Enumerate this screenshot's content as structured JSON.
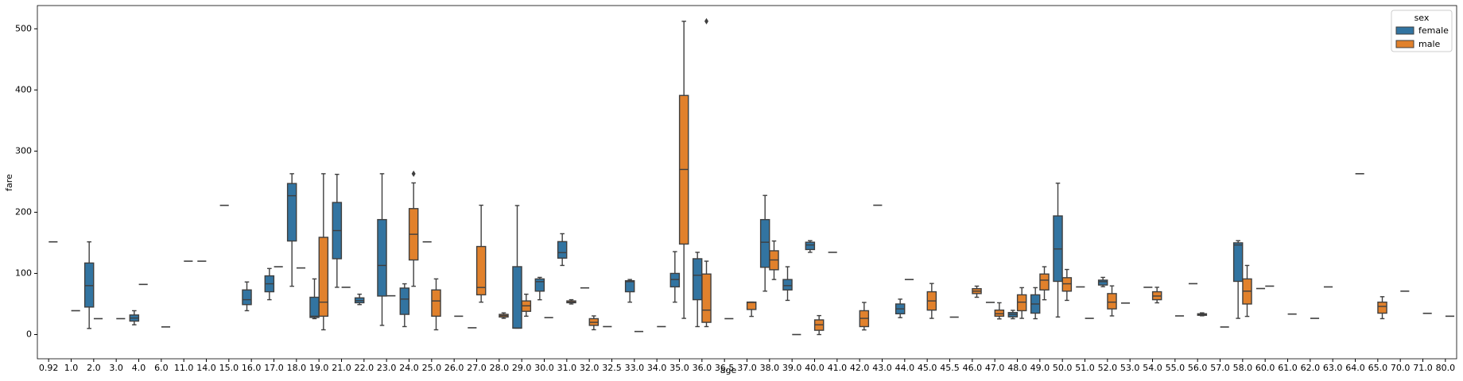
{
  "chart_data": {
    "type": "box",
    "x_label": "age",
    "y_label": "fare",
    "categories": [
      "0.92",
      "1.0",
      "2.0",
      "3.0",
      "4.0",
      "6.0",
      "11.0",
      "14.0",
      "15.0",
      "16.0",
      "17.0",
      "18.0",
      "19.0",
      "21.0",
      "22.0",
      "23.0",
      "24.0",
      "25.0",
      "26.0",
      "27.0",
      "28.0",
      "29.0",
      "30.0",
      "31.0",
      "32.0",
      "32.5",
      "33.0",
      "34.0",
      "35.0",
      "36.0",
      "36.5",
      "37.0",
      "38.0",
      "39.0",
      "40.0",
      "41.0",
      "42.0",
      "43.0",
      "44.0",
      "45.0",
      "45.5",
      "46.0",
      "47.0",
      "48.0",
      "49.0",
      "50.0",
      "51.0",
      "52.0",
      "53.0",
      "54.0",
      "55.0",
      "56.0",
      "57.0",
      "58.0",
      "60.0",
      "61.0",
      "62.0",
      "63.0",
      "64.0",
      "65.0",
      "70.0",
      "71.0",
      "80.0"
    ],
    "ylim": [
      -39.6,
      538
    ],
    "yticks": [
      0,
      100,
      200,
      300,
      400,
      500
    ],
    "legend": {
      "title": "sex",
      "position": "upper right"
    },
    "series": [
      {
        "name": "female",
        "color": "#3274a1",
        "values": [
          null,
          null,
          {
            "whislo": 10,
            "q1": 45,
            "med": 80,
            "q3": 117,
            "whishi": 151.6
          },
          null,
          {
            "whislo": 16,
            "q1": 22,
            "med": 27,
            "q3": 32,
            "whishi": 39
          },
          null,
          null,
          120,
          211.3,
          {
            "whislo": 39,
            "q1": 49,
            "med": 57,
            "q3": 73,
            "whishi": 86
          },
          {
            "whislo": 57,
            "q1": 70,
            "med": 83,
            "q3": 96,
            "whishi": 108
          },
          {
            "whislo": 79,
            "q1": 153,
            "med": 227,
            "q3": 247,
            "whishi": 263
          },
          {
            "whislo": 26,
            "q1": 28,
            "med": 30,
            "q3": 61,
            "whishi": 91
          },
          {
            "whislo": 77.3,
            "q1": 124,
            "med": 170,
            "q3": 216,
            "whishi": 262
          },
          {
            "whislo": 49,
            "q1": 52,
            "med": 55.4,
            "q3": 60,
            "whishi": 66
          },
          {
            "whislo": 15,
            "q1": 63,
            "med": 113,
            "q3": 188,
            "whishi": 263
          },
          {
            "whislo": 13,
            "q1": 33,
            "med": 58,
            "q3": 76,
            "whishi": 83
          },
          151.6,
          null,
          11.1,
          null,
          {
            "whislo": 10.5,
            "q1": 10.5,
            "med": 10.5,
            "q3": 111,
            "whishi": 211
          },
          {
            "whislo": 56.9,
            "q1": 71,
            "med": 86.5,
            "q3": 91,
            "whishi": 93.5
          },
          {
            "whislo": 113,
            "q1": 125,
            "med": 134,
            "q3": 152,
            "whishi": 164.9
          },
          76.3,
          13,
          {
            "whislo": 53,
            "q1": 70,
            "med": 86.5,
            "q3": 88,
            "whishi": 90
          },
          null,
          {
            "whislo": 53,
            "q1": 78,
            "med": 90,
            "q3": 100,
            "whishi": 135.6
          },
          {
            "whislo": 13,
            "q1": 57,
            "med": 97,
            "q3": 124,
            "whishi": 134.5
          },
          null,
          null,
          {
            "whislo": 71,
            "q1": 110,
            "med": 151,
            "q3": 188,
            "whishi": 227.5
          },
          {
            "whislo": 55.9,
            "q1": 73,
            "med": 80,
            "q3": 90,
            "whishi": 110.9
          },
          {
            "whislo": 134.5,
            "q1": 139,
            "med": 146.5,
            "q3": 151,
            "whishi": 153.5
          },
          134.5,
          null,
          211.5,
          {
            "whislo": 27.7,
            "q1": 34,
            "med": 42,
            "q3": 50,
            "whishi": 57.9
          },
          null,
          null,
          null,
          52.6,
          {
            "whislo": 25.9,
            "q1": 29,
            "med": 33,
            "q3": 36,
            "whishi": 39.6
          },
          {
            "whislo": 25.9,
            "q1": 35,
            "med": 50,
            "q3": 65,
            "whishi": 76.7
          },
          {
            "whislo": 28.7,
            "q1": 87,
            "med": 140,
            "q3": 194,
            "whishi": 247.5
          },
          77.9,
          {
            "whislo": 78.3,
            "q1": 81,
            "med": 86.5,
            "q3": 89,
            "whishi": 93.5
          },
          51.5,
          77.3,
          null,
          83.2,
          null,
          {
            "whislo": 26.5,
            "q1": 87,
            "med": 146.5,
            "q3": 150,
            "whishi": 153.5
          },
          75.25,
          null,
          null,
          77.9,
          null,
          null,
          null,
          null,
          null
        ]
      },
      {
        "name": "male",
        "color": "#e1812c",
        "values": [
          151.6,
          39,
          26,
          26,
          82,
          12.5,
          120,
          null,
          null,
          null,
          110.9,
          108.9,
          {
            "whislo": 7.8,
            "q1": 30,
            "med": 53,
            "q3": 159,
            "whishi": 263
          },
          77.3,
          null,
          63.4,
          {
            "whislo": 79,
            "q1": 122,
            "med": 164,
            "q3": 206,
            "whishi": 248,
            "fliers": [
              263
            ]
          },
          {
            "whislo": 7.8,
            "q1": 30,
            "med": 55,
            "q3": 73,
            "whishi": 91
          },
          30,
          {
            "whislo": 53,
            "q1": 65,
            "med": 77,
            "q3": 144,
            "whishi": 211.5
          },
          {
            "whislo": 26.5,
            "q1": 28.7,
            "med": 31,
            "q3": 33,
            "whishi": 35.5
          },
          {
            "whislo": 30,
            "q1": 38,
            "med": 47,
            "q3": 55,
            "whishi": 66
          },
          27.7,
          {
            "whislo": 50,
            "q1": 52,
            "med": 53,
            "q3": 55,
            "whishi": 57
          },
          {
            "whislo": 7.9,
            "q1": 15,
            "med": 20,
            "q3": 26,
            "whishi": 30.5
          },
          null,
          5,
          13,
          {
            "whislo": 26.5,
            "q1": 148,
            "med": 270,
            "q3": 391,
            "whishi": 512.3
          },
          {
            "whislo": 13,
            "q1": 20,
            "med": 40,
            "q3": 99,
            "whishi": 120,
            "fliers": [
              512.3
            ]
          },
          26,
          {
            "whislo": 29.7,
            "q1": 41,
            "med": 52.5,
            "q3": 53.1,
            "whishi": 53.1
          },
          {
            "whislo": 90,
            "q1": 106,
            "med": 122,
            "q3": 137,
            "whishi": 153
          },
          0,
          {
            "whislo": 0,
            "q1": 7,
            "med": 16,
            "q3": 24,
            "whishi": 31
          },
          null,
          {
            "whislo": 7.6,
            "q1": 13,
            "med": 26.5,
            "q3": 39,
            "whishi": 52.5
          },
          null,
          90,
          {
            "whislo": 26.5,
            "q1": 40,
            "med": 55,
            "q3": 70,
            "whishi": 83.5
          },
          28.5,
          {
            "whislo": 61,
            "q1": 67,
            "med": 71,
            "q3": 75,
            "whishi": 79.2
          },
          {
            "whislo": 25.6,
            "q1": 30,
            "med": 34,
            "q3": 40,
            "whishi": 52
          },
          {
            "whislo": 26.5,
            "q1": 39,
            "med": 53,
            "q3": 65,
            "whishi": 76.7
          },
          {
            "whislo": 56.9,
            "q1": 73,
            "med": 89,
            "q3": 99,
            "whishi": 110.9
          },
          {
            "whislo": 55.9,
            "q1": 71,
            "med": 83,
            "q3": 93,
            "whishi": 106.4
          },
          26.5,
          {
            "whislo": 30.5,
            "q1": 42,
            "med": 53,
            "q3": 67,
            "whishi": 79.6
          },
          null,
          {
            "whislo": 51.9,
            "q1": 57,
            "med": 63,
            "q3": 70,
            "whishi": 77.3
          },
          30.5,
          {
            "whislo": 30.7,
            "q1": 31.5,
            "med": 33,
            "q3": 34,
            "whishi": 35.5
          },
          12.35,
          {
            "whislo": 29.7,
            "q1": 50,
            "med": 71,
            "q3": 91,
            "whishi": 113
          },
          79.2,
          33.5,
          26.5,
          null,
          263,
          {
            "whislo": 26,
            "q1": 35,
            "med": 46,
            "q3": 53,
            "whishi": 61.9
          },
          71,
          34.7,
          30
        ]
      }
    ]
  }
}
